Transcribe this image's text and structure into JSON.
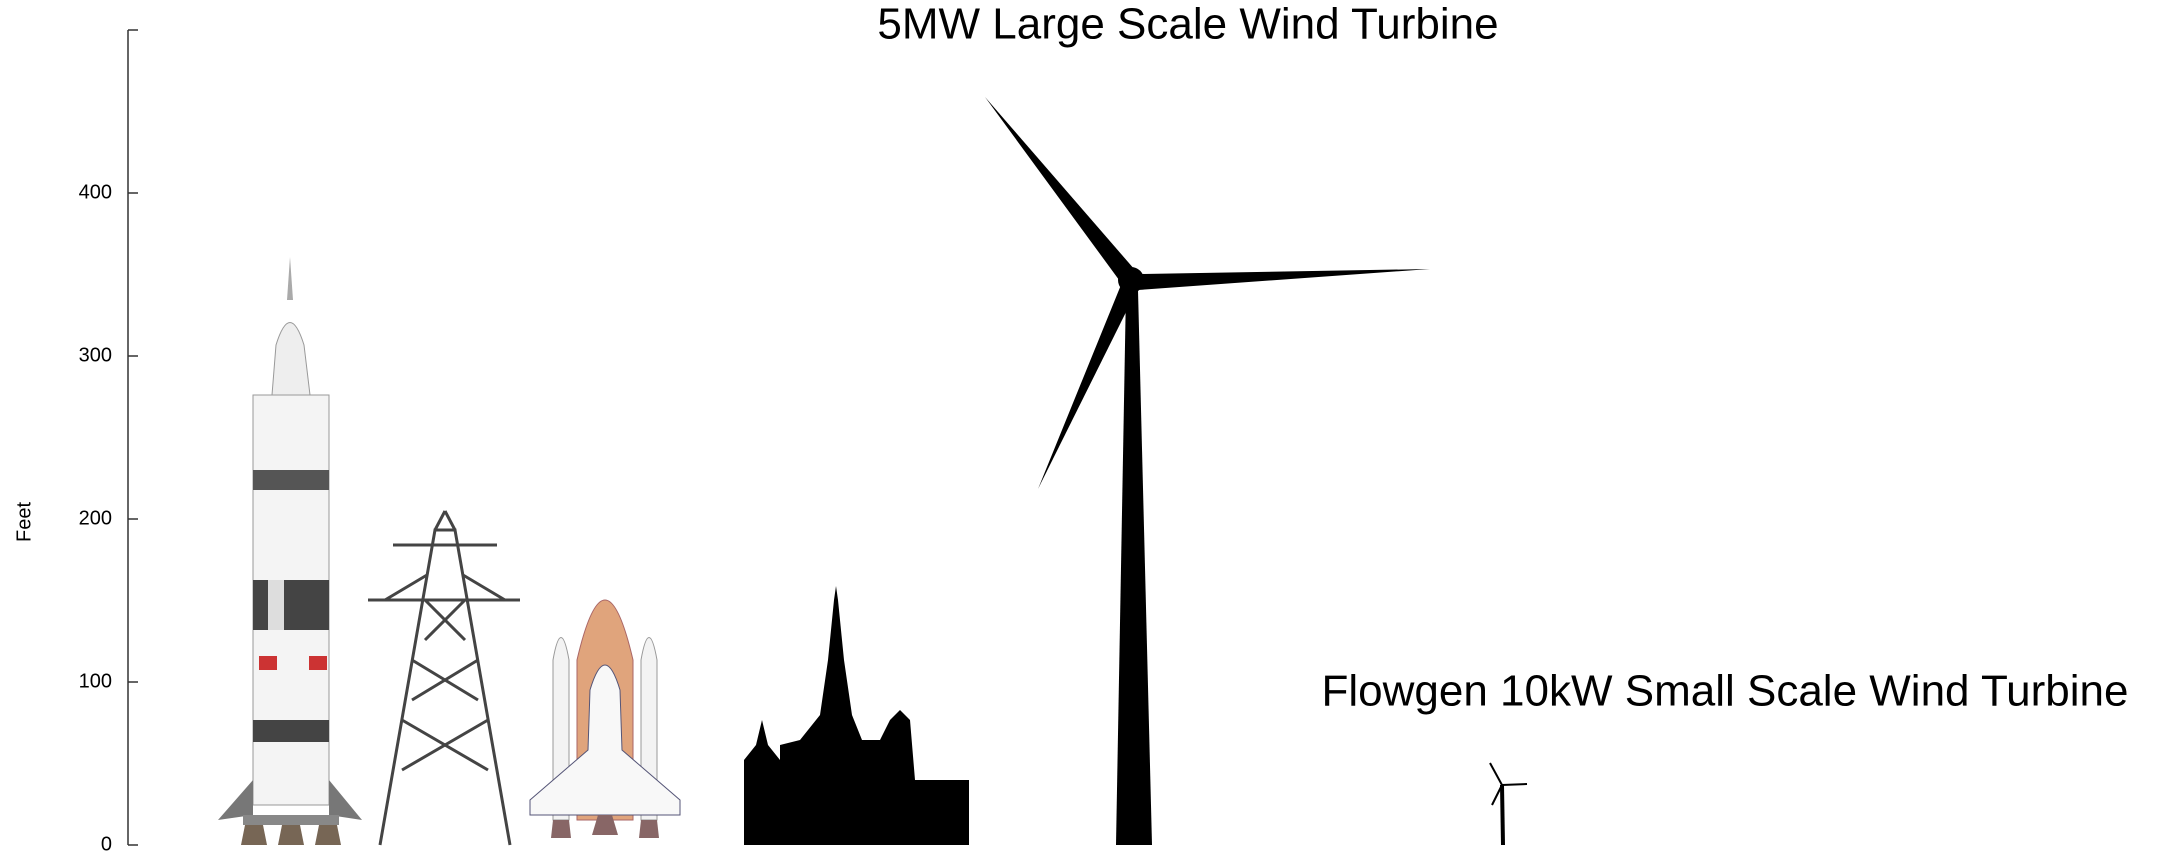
{
  "chart_data": {
    "type": "illustration",
    "title": "5MW Large Scale Wind Turbine",
    "annotation": "Flowgen 10kW Small Scale Wind Turbine",
    "y_label": "Feet",
    "ylim": [
      0,
      500
    ],
    "yticks": [
      0,
      100,
      200,
      300,
      400
    ]
  }
}
